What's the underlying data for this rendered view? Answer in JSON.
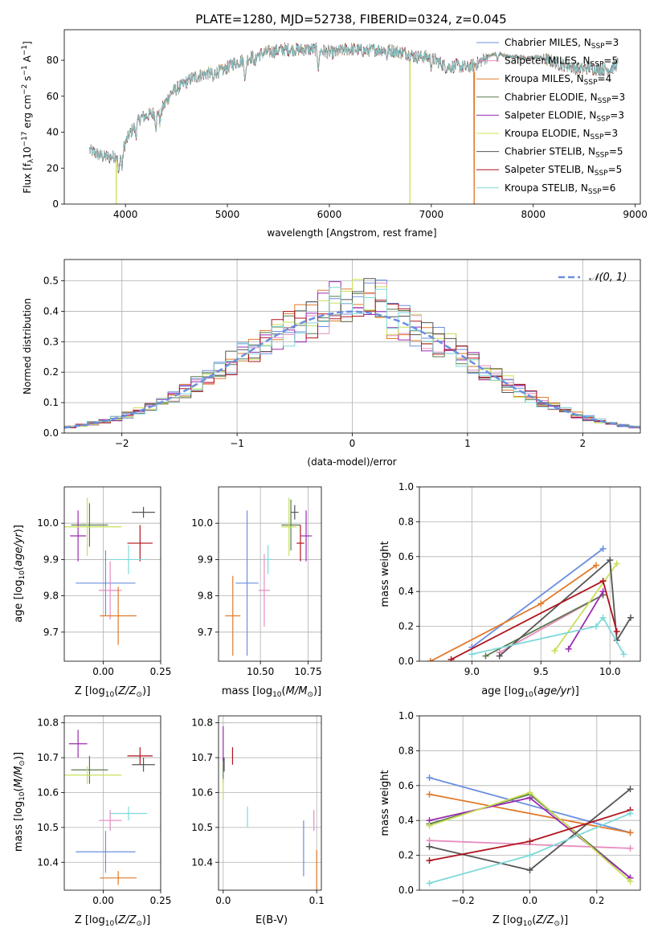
{
  "title": "PLATE=1280, MJD=52738, FIBERID=0324, z=0.045",
  "colors": {
    "Chabrier MILES": "#6a8fe0",
    "Salpeter MILES": "#e68cc0",
    "Kroupa MILES": "#e07a2b",
    "Chabrier ELODIE": "#5a7a4a",
    "Salpeter ELODIE": "#9a2bb0",
    "Kroupa ELODIE": "#c8e05a",
    "Chabrier STELIB": "#555555",
    "Salpeter STELIB": "#b0141e",
    "Kroupa STELIB": "#7fd8d8"
  },
  "chart_data": [
    {
      "id": "spectrum",
      "type": "line",
      "xlabel": "wavelength [Angstrom, rest frame]",
      "ylabel": "Flux [f$_\\lambda$10$^{-17}$ erg cm$^{-2}$ s$^{-1}$ A$^{-1}$]",
      "xlim": [
        3400,
        9050
      ],
      "ylim": [
        0,
        97
      ],
      "xticks": [
        4000,
        5000,
        6000,
        7000,
        8000,
        9000
      ],
      "yticks": [
        0,
        20,
        40,
        60,
        80
      ],
      "legend_position": "top-right",
      "legend": [
        {
          "label": "Chabrier MILES, N",
          "sub": "SSP",
          "suffix": "=3",
          "model": "Chabrier MILES"
        },
        {
          "label": "Salpeter MILES, N",
          "sub": "SSP",
          "suffix": "=5",
          "model": "Salpeter MILES"
        },
        {
          "label": "Kroupa MILES, N",
          "sub": "SSP",
          "suffix": "=4",
          "model": "Kroupa MILES"
        },
        {
          "label": "Chabrier ELODIE, N",
          "sub": "SSP",
          "suffix": "=3",
          "model": "Chabrier ELODIE"
        },
        {
          "label": "Salpeter ELODIE, N",
          "sub": "SSP",
          "suffix": "=3",
          "model": "Salpeter ELODIE"
        },
        {
          "label": "Kroupa ELODIE, N",
          "sub": "SSP",
          "suffix": "=3",
          "model": "Kroupa ELODIE"
        },
        {
          "label": "Chabrier STELIB, N",
          "sub": "SSP",
          "suffix": "=5",
          "model": "Chabrier STELIB"
        },
        {
          "label": "Salpeter STELIB, N",
          "sub": "SSP",
          "suffix": "=5",
          "model": "Salpeter STELIB"
        },
        {
          "label": "Kroupa STELIB, N",
          "sub": "SSP",
          "suffix": "=6",
          "model": "Kroupa STELIB"
        }
      ],
      "continuum": {
        "x": [
          3650,
          3750,
          3850,
          3950,
          4050,
          4150,
          4250,
          4350,
          4450,
          4550,
          4650,
          4750,
          4850,
          4950,
          5050,
          5150,
          5250,
          5350,
          5450,
          5550,
          5650,
          5750,
          5850,
          5950,
          6050,
          6150,
          6250,
          6350,
          6450,
          6550,
          6650,
          6750,
          6850,
          6950,
          7050,
          7150,
          7250,
          7350,
          7450,
          7550,
          7650,
          7750,
          7850,
          7950,
          8050,
          8150,
          8250,
          8350,
          8450,
          8550,
          8650,
          8750,
          8830
        ],
        "y": [
          30,
          27,
          26,
          28,
          40,
          48,
          50,
          52,
          62,
          66,
          70,
          72,
          73,
          74,
          78,
          80,
          82,
          84,
          85,
          86,
          86,
          86,
          86,
          85,
          84,
          86,
          86,
          85,
          86,
          86,
          85,
          84,
          82,
          82,
          80,
          76,
          77,
          76,
          78,
          82,
          84,
          82,
          82,
          81,
          82,
          80,
          78,
          77,
          75,
          76,
          75,
          75,
          78
        ]
      },
      "absorption_lines": [
        {
          "x": 3934,
          "depth": 12
        },
        {
          "x": 3968,
          "depth": 10
        },
        {
          "x": 4102,
          "depth": 6
        },
        {
          "x": 4300,
          "depth": 8
        },
        {
          "x": 4340,
          "depth": 6
        },
        {
          "x": 4861,
          "depth": 5
        },
        {
          "x": 5175,
          "depth": 12
        },
        {
          "x": 5270,
          "depth": 5
        },
        {
          "x": 5893,
          "depth": 10
        },
        {
          "x": 6563,
          "depth": 4
        },
        {
          "x": 7000,
          "depth": 4
        },
        {
          "x": 7650,
          "depth": 4
        }
      ],
      "dropouts": [
        {
          "x": 3910,
          "model": "Kroupa ELODIE"
        },
        {
          "x": 6790,
          "model": "Kroupa ELODIE"
        },
        {
          "x": 7420,
          "model": "Kroupa MILES"
        }
      ],
      "smooth_segment_x": [
        7550,
        8100
      ]
    },
    {
      "id": "residuals",
      "type": "histogram",
      "xlabel": "(data-model)/error",
      "ylabel": "Normed distribution",
      "xlim": [
        -2.5,
        2.5
      ],
      "ylim": [
        0,
        0.57
      ],
      "xticks": [
        -2,
        -1,
        0,
        1,
        2
      ],
      "xtick_labels": [
        "−2",
        "−1",
        "0",
        "1",
        "2"
      ],
      "yticks": [
        0.0,
        0.1,
        0.2,
        0.3,
        0.4,
        0.5
      ],
      "ytick_labels": [
        "0.0",
        "0.1",
        "0.2",
        "0.3",
        "0.4",
        "0.5"
      ],
      "bin_width": 0.1,
      "legend": "𝒩(0, 1)",
      "reference_curve": {
        "type": "gaussian",
        "mean": 0,
        "sigma": 1
      }
    },
    {
      "id": "age-vs-Z",
      "type": "errorbar",
      "xlabel": "Z [log$_{10}$($Z/Z_\\odot$)]",
      "ylabel": "age  [log$_{10}$($age/yr$)]",
      "xlim": [
        -0.17,
        0.25
      ],
      "ylim": [
        9.62,
        10.1
      ],
      "xticks": [
        0.0,
        0.25
      ],
      "xtick_labels": [
        "0.00",
        "0.25"
      ],
      "yticks": [
        9.7,
        9.8,
        9.9,
        10.0
      ],
      "ytick_labels": [
        "9.7",
        "9.8",
        "9.9",
        "10.0"
      ],
      "points": [
        {
          "model": "Chabrier MILES",
          "x": 0.01,
          "xerr": 0.13,
          "y": 9.835,
          "yerr": 0.09
        },
        {
          "model": "Salpeter MILES",
          "x": 0.03,
          "xerr": 0.05,
          "y": 9.815,
          "yerr": 0.08
        },
        {
          "model": "Kroupa MILES",
          "x": 0.065,
          "xerr": 0.08,
          "y": 9.745,
          "yerr": 0.08
        },
        {
          "model": "Chabrier ELODIE",
          "x": -0.06,
          "xerr": 0.08,
          "y": 9.995,
          "yerr": 0.06
        },
        {
          "model": "Salpeter ELODIE",
          "x": -0.11,
          "xerr": 0.035,
          "y": 9.965,
          "yerr": 0.07
        },
        {
          "model": "Kroupa ELODIE",
          "x": -0.07,
          "xerr": 0.15,
          "y": 9.99,
          "yerr": 0.08
        },
        {
          "model": "Chabrier STELIB",
          "x": 0.175,
          "xerr": 0.05,
          "y": 10.03,
          "yerr": 0.015
        },
        {
          "model": "Salpeter STELIB",
          "x": 0.16,
          "xerr": 0.055,
          "y": 9.945,
          "yerr": 0.05
        },
        {
          "model": "Kroupa STELIB",
          "x": 0.11,
          "xerr": 0.08,
          "y": 9.9,
          "yerr": 0.04
        }
      ]
    },
    {
      "id": "age-vs-mass",
      "type": "errorbar",
      "xlabel": "mass [log$_{10}$($M/M_\\odot$)]",
      "ylabel": "",
      "xlim": [
        10.28,
        10.82
      ],
      "ylim": [
        9.62,
        10.1
      ],
      "xticks": [
        10.5,
        10.75
      ],
      "xtick_labels": [
        "10.50",
        "10.75"
      ],
      "yticks": [
        9.7,
        9.8,
        9.9,
        10.0
      ],
      "ytick_labels": [
        "9.7",
        "9.8",
        "9.9",
        "10.0"
      ],
      "points": [
        {
          "model": "Chabrier MILES",
          "x": 10.43,
          "xerr": 0.06,
          "y": 9.835,
          "yerr": 0.2
        },
        {
          "model": "Salpeter MILES",
          "x": 10.52,
          "xerr": 0.03,
          "y": 9.815,
          "yerr": 0.1
        },
        {
          "model": "Kroupa MILES",
          "x": 10.355,
          "xerr": 0.04,
          "y": 9.745,
          "yerr": 0.11
        },
        {
          "model": "Chabrier ELODIE",
          "x": 10.66,
          "xerr": 0.05,
          "y": 9.995,
          "yerr": 0.07
        },
        {
          "model": "Salpeter ELODIE",
          "x": 10.74,
          "xerr": 0.03,
          "y": 9.965,
          "yerr": 0.07
        },
        {
          "model": "Kroupa ELODIE",
          "x": 10.65,
          "xerr": 0.04,
          "y": 9.99,
          "yerr": 0.08
        },
        {
          "model": "Chabrier STELIB",
          "x": 10.68,
          "xerr": 0.02,
          "y": 10.03,
          "yerr": 0.02
        },
        {
          "model": "Salpeter STELIB",
          "x": 10.71,
          "xerr": 0.02,
          "y": 9.945,
          "yerr": 0.05
        },
        {
          "model": "Kroupa STELIB",
          "x": 10.54,
          "xerr": 0.02,
          "y": 9.9,
          "yerr": 0.04
        }
      ]
    },
    {
      "id": "weights-vs-age",
      "type": "line",
      "xlabel": "age  [log$_{10}$($age/yr$)]",
      "ylabel": "mass weight",
      "xlim": [
        8.62,
        10.22
      ],
      "ylim": [
        0,
        1.0
      ],
      "xticks": [
        9.0,
        9.5,
        10.0
      ],
      "xtick_labels": [
        "9.0",
        "9.5",
        "10.0"
      ],
      "yticks": [
        0,
        0.2,
        0.4,
        0.6,
        0.8,
        1.0
      ],
      "ytick_labels": [
        "0.0",
        "0.2",
        "0.4",
        "0.6",
        "0.8",
        "1.0"
      ],
      "series": [
        {
          "model": "Chabrier MILES",
          "x": [
            9.0,
            9.95
          ],
          "y": [
            0.08,
            0.645
          ]
        },
        {
          "model": "Salpeter MILES",
          "x": [
            9.2,
            9.95
          ],
          "y": [
            0.05,
            0.38
          ]
        },
        {
          "model": "Kroupa MILES",
          "x": [
            8.7,
            9.5,
            9.9
          ],
          "y": [
            0.0,
            0.33,
            0.55
          ]
        },
        {
          "model": "Chabrier ELODIE",
          "x": [
            9.1,
            9.95
          ],
          "y": [
            0.03,
            0.38
          ]
        },
        {
          "model": "Salpeter ELODIE",
          "x": [
            9.7,
            9.95
          ],
          "y": [
            0.07,
            0.4
          ]
        },
        {
          "model": "Kroupa ELODIE",
          "x": [
            9.6,
            10.05
          ],
          "y": [
            0.06,
            0.56
          ]
        },
        {
          "model": "Chabrier STELIB",
          "x": [
            9.2,
            10.0,
            10.05,
            10.15
          ],
          "y": [
            0.03,
            0.58,
            0.12,
            0.25
          ]
        },
        {
          "model": "Salpeter STELIB",
          "x": [
            8.85,
            9.95,
            10.05
          ],
          "y": [
            0.01,
            0.46,
            0.17
          ]
        },
        {
          "model": "Kroupa STELIB",
          "x": [
            9.0,
            9.9,
            9.95,
            10.1
          ],
          "y": [
            0.04,
            0.2,
            0.25,
            0.04
          ]
        }
      ]
    },
    {
      "id": "mass-vs-Z",
      "type": "errorbar",
      "xlabel": "Z [log$_{10}$($Z/Z_\\odot$)]",
      "ylabel": "mass [log$_{10}$($M/M_\\odot$)]",
      "xlim": [
        -0.17,
        0.25
      ],
      "ylim": [
        10.32,
        10.82
      ],
      "xticks": [
        0.0,
        0.25
      ],
      "xtick_labels": [
        "0.00",
        "0.25"
      ],
      "yticks": [
        10.4,
        10.5,
        10.6,
        10.7,
        10.8
      ],
      "ytick_labels": [
        "10.4",
        "10.5",
        "10.6",
        "10.7",
        "10.8"
      ],
      "points": [
        {
          "model": "Chabrier MILES",
          "x": 0.01,
          "xerr": 0.13,
          "y": 10.43,
          "yerr": 0.06
        },
        {
          "model": "Salpeter MILES",
          "x": 0.03,
          "xerr": 0.05,
          "y": 10.52,
          "yerr": 0.03
        },
        {
          "model": "Kroupa MILES",
          "x": 0.065,
          "xerr": 0.08,
          "y": 10.355,
          "yerr": 0.02
        },
        {
          "model": "Chabrier ELODIE",
          "x": -0.06,
          "xerr": 0.08,
          "y": 10.665,
          "yerr": 0.04
        },
        {
          "model": "Salpeter ELODIE",
          "x": -0.11,
          "xerr": 0.04,
          "y": 10.74,
          "yerr": 0.04
        },
        {
          "model": "Kroupa ELODIE",
          "x": -0.07,
          "xerr": 0.15,
          "y": 10.65,
          "yerr": 0.025
        },
        {
          "model": "Chabrier STELIB",
          "x": 0.175,
          "xerr": 0.05,
          "y": 10.68,
          "yerr": 0.02
        },
        {
          "model": "Salpeter STELIB",
          "x": 0.16,
          "xerr": 0.055,
          "y": 10.705,
          "yerr": 0.025
        },
        {
          "model": "Kroupa STELIB",
          "x": 0.11,
          "xerr": 0.08,
          "y": 10.54,
          "yerr": 0.02
        }
      ]
    },
    {
      "id": "mass-vs-ebv",
      "type": "errorbar",
      "xlabel": "E(B-V)",
      "ylabel": "",
      "xlim": [
        -0.005,
        0.105
      ],
      "ylim": [
        10.32,
        10.82
      ],
      "xticks": [
        0.0,
        0.1
      ],
      "xtick_labels": [
        "0.0",
        "0.1"
      ],
      "yticks": [
        10.4,
        10.5,
        10.6,
        10.7,
        10.8
      ],
      "ytick_labels": [
        "10.4",
        "10.5",
        "10.6",
        "10.7",
        "10.8"
      ],
      "points": [
        {
          "model": "Chabrier MILES",
          "x": 0.086,
          "xerr": 0,
          "y": 10.44,
          "yerr": 0.08
        },
        {
          "model": "Salpeter MILES",
          "x": 0.097,
          "xerr": 0,
          "y": 10.52,
          "yerr": 0.03
        },
        {
          "model": "Kroupa MILES",
          "x": 0.1,
          "xerr": 0,
          "y": 10.355,
          "yerr": 0.08
        },
        {
          "model": "Chabrier ELODIE",
          "x": 0.0,
          "xerr": 0,
          "y": 10.665,
          "yerr": 0.035
        },
        {
          "model": "Salpeter ELODIE",
          "x": 0.0,
          "xerr": 0,
          "y": 10.74,
          "yerr": 0.05
        },
        {
          "model": "Kroupa ELODIE",
          "x": 0.0,
          "xerr": 0,
          "y": 10.61,
          "yerr": 0.03
        },
        {
          "model": "Chabrier STELIB",
          "x": 0.001,
          "xerr": 0,
          "y": 10.68,
          "yerr": 0.02
        },
        {
          "model": "Salpeter STELIB",
          "x": 0.01,
          "xerr": 0,
          "y": 10.705,
          "yerr": 0.025
        },
        {
          "model": "Kroupa STELIB",
          "x": 0.026,
          "xerr": 0,
          "y": 10.53,
          "yerr": 0.03
        }
      ]
    },
    {
      "id": "weights-vs-Z",
      "type": "line",
      "xlabel": "Z [log$_{10}$($Z/Z_\\odot$)]",
      "ylabel": "mass weight",
      "xlim": [
        -0.33,
        0.33
      ],
      "ylim": [
        0,
        1.0
      ],
      "xticks": [
        -0.2,
        0.0,
        0.2
      ],
      "xtick_labels": [
        "−0.2",
        "0.0",
        "0.2"
      ],
      "yticks": [
        0,
        0.2,
        0.4,
        0.6,
        0.8,
        1.0
      ],
      "ytick_labels": [
        "0.0",
        "0.2",
        "0.4",
        "0.6",
        "0.8",
        "1.0"
      ],
      "series": [
        {
          "model": "Chabrier MILES",
          "x": [
            -0.3,
            0.3
          ],
          "y": [
            0.645,
            0.33
          ]
        },
        {
          "model": "Salpeter MILES",
          "x": [
            -0.3,
            0.3
          ],
          "y": [
            0.285,
            0.24
          ]
        },
        {
          "model": "Kroupa MILES",
          "x": [
            -0.3,
            0.3
          ],
          "y": [
            0.55,
            0.33
          ]
        },
        {
          "model": "Chabrier ELODIE",
          "x": [
            -0.3,
            0.0,
            0.3
          ],
          "y": [
            0.38,
            0.55,
            0.07
          ]
        },
        {
          "model": "Salpeter ELODIE",
          "x": [
            -0.3,
            0.0,
            0.3
          ],
          "y": [
            0.4,
            0.53,
            0.07
          ]
        },
        {
          "model": "Kroupa ELODIE",
          "x": [
            -0.3,
            0.0,
            0.3
          ],
          "y": [
            0.37,
            0.56,
            0.05
          ]
        },
        {
          "model": "Chabrier STELIB",
          "x": [
            -0.3,
            0.0,
            0.3
          ],
          "y": [
            0.25,
            0.115,
            0.58
          ]
        },
        {
          "model": "Salpeter STELIB",
          "x": [
            -0.3,
            0.0,
            0.3
          ],
          "y": [
            0.17,
            0.28,
            0.46
          ]
        },
        {
          "model": "Kroupa STELIB",
          "x": [
            -0.3,
            0.0,
            0.3
          ],
          "y": [
            0.04,
            0.2,
            0.44
          ]
        }
      ]
    }
  ]
}
